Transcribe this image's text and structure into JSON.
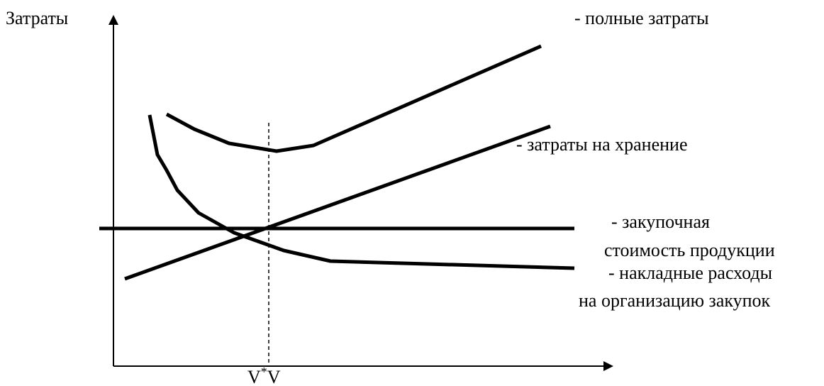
{
  "axes": {
    "y_label": "Затраты",
    "x_label_main": "V",
    "x_label_sup": "*",
    "x_label_end": "V"
  },
  "legend": {
    "total": "- полные затраты",
    "storage": "- затраты на хранение",
    "purchase_line1": "- закупочная",
    "purchase_line2": "стоимость продукции",
    "overhead_line1": "- накладные расходы",
    "overhead_line2": "на организацию закупок"
  },
  "colors": {
    "ink": "#000000",
    "background": "#ffffff"
  }
}
